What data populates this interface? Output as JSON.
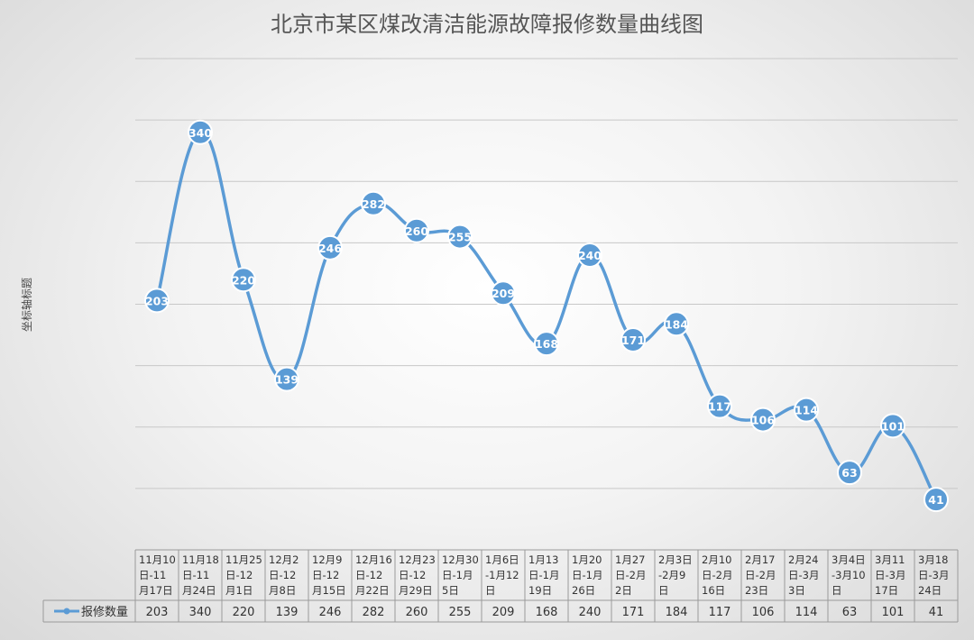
{
  "chart_data": {
    "type": "line",
    "title": "北京市某区煤改清洁能源故障报修数量曲线图",
    "ylabel": "坐标轴标题",
    "xlabel": "",
    "categories": [
      "11月10日-11月17日",
      "11月18日-11月24日",
      "11月25日-12月1日",
      "12月2日-12月8日",
      "12月9日-12月15日",
      "12月16日-12月22日",
      "12月23日-12月29日",
      "12月30日-1月5日",
      "1月6日-1月12日",
      "1月13日-1月19日",
      "1月20日-1月26日",
      "1月27日-2月2日",
      "2月3日-2月9日",
      "2月10日-2月16日",
      "2月17日-2月23日",
      "2月24日-3月3日",
      "3月4日-3月10日",
      "3月11日-3月17日",
      "3月18日-3月24日"
    ],
    "category_lines": [
      [
        "11月10",
        "日-11",
        "月17日"
      ],
      [
        "11月18",
        "日-11",
        "月24日"
      ],
      [
        "11月25",
        "日-12",
        "月1日"
      ],
      [
        "12月2",
        "日-12",
        "月8日"
      ],
      [
        "12月9",
        "日-12",
        "月15日"
      ],
      [
        "12月16",
        "日-12",
        "月22日"
      ],
      [
        "12月23",
        "日-12",
        "月29日"
      ],
      [
        "12月30",
        "日-1月",
        "5日"
      ],
      [
        "1月6日",
        "-1月12",
        "日"
      ],
      [
        "1月13",
        "日-1月",
        "19日"
      ],
      [
        "1月20",
        "日-1月",
        "26日"
      ],
      [
        "1月27",
        "日-2月",
        "2日"
      ],
      [
        "2月3日",
        "-2月9",
        "日"
      ],
      [
        "2月10",
        "日-2月",
        "16日"
      ],
      [
        "2月17",
        "日-2月",
        "23日"
      ],
      [
        "2月24",
        "日-3月",
        "3日"
      ],
      [
        "3月4日",
        "-3月10",
        "日"
      ],
      [
        "3月11",
        "日-3月",
        "17日"
      ],
      [
        "3月18",
        "日-3月",
        "24日"
      ]
    ],
    "series": [
      {
        "name": "报修数量",
        "values": [
          203,
          340,
          220,
          139,
          246,
          282,
          260,
          255,
          209,
          168,
          240,
          171,
          184,
          117,
          106,
          114,
          63,
          101,
          41
        ]
      }
    ],
    "ylim": [
      0,
      400
    ],
    "ytick_step": 50,
    "y_tick_labels_shown": false,
    "grid": true,
    "smooth": true,
    "data_labels": true,
    "legend": "data-table-left",
    "colors": {
      "series": "#5b9bd5",
      "gridline": "#c8c8c8",
      "axis": "#9a9a9a",
      "title": "#555555",
      "text": "#333333"
    }
  }
}
